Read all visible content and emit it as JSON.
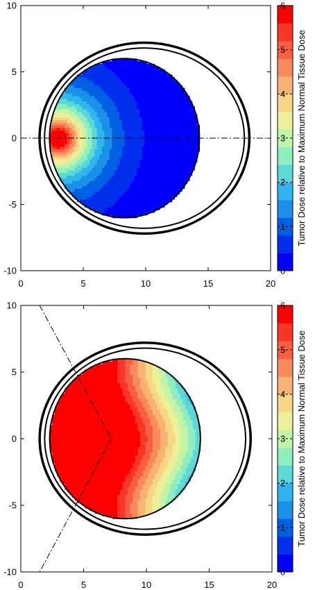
{
  "chart_data": [
    {
      "type": "heatmap",
      "title": "",
      "xlabel": "",
      "ylabel": "",
      "xlim": [
        0,
        20
      ],
      "ylim": [
        -10,
        10
      ],
      "xticks": [
        "0",
        "5",
        "10",
        "15",
        "20"
      ],
      "yticks": [
        "-10",
        "-5",
        "0",
        "5",
        "10"
      ],
      "colorbar": {
        "label": "Tumor Dose relative to Maximum Normal Tissue Dose",
        "range": [
          0,
          6
        ],
        "ticks": [
          "0",
          "1",
          "2",
          "3",
          "4",
          "5",
          "6"
        ],
        "colors": [
          "#0000ff",
          "#0030ee",
          "#0060e4",
          "#1a90e8",
          "#30b6ee",
          "#5cd8d8",
          "#8eeec0",
          "#c2f4a8",
          "#ecf09a",
          "#f8d688",
          "#f8b272",
          "#f88a5c",
          "#f85e44",
          "#f83628",
          "#ff0000"
        ]
      },
      "tumor": {
        "center": [
          8.3,
          0
        ],
        "radius": 6.0,
        "peak_x": 3.0,
        "peak_value": 6.0,
        "min_value": 0.2
      },
      "body_outlines": [
        {
          "center": [
            9.9,
            0
          ],
          "rx": 8.0,
          "ry": 6.8
        },
        {
          "center": [
            9.9,
            0
          ],
          "rx": 8.4,
          "ry": 7.2
        }
      ],
      "beam_lines": [
        {
          "from": [
            0,
            0
          ],
          "to": [
            20,
            0
          ]
        }
      ]
    },
    {
      "type": "heatmap",
      "title": "",
      "xlabel": "",
      "ylabel": "",
      "xlim": [
        0,
        20
      ],
      "ylim": [
        -10,
        10
      ],
      "xticks": [
        "0",
        "5",
        "10",
        "15",
        "20"
      ],
      "yticks": [
        "-10",
        "-5",
        "0",
        "5",
        "10"
      ],
      "colorbar": {
        "label": "Tumor Dose relative to Maximum Normal Tissue Dose",
        "range": [
          0,
          6
        ],
        "ticks": [
          "0",
          "1",
          "2",
          "3",
          "4",
          "5",
          "6"
        ],
        "colors": [
          "#0000ff",
          "#0030ee",
          "#0060e4",
          "#1a90e8",
          "#30b6ee",
          "#5cd8d8",
          "#8eeec0",
          "#c2f4a8",
          "#ecf09a",
          "#f8d688",
          "#f8b272",
          "#f88a5c",
          "#f85e44",
          "#f83628",
          "#ff0000"
        ]
      },
      "tumor": {
        "center": [
          8.3,
          0
        ],
        "radius": 6.0,
        "plateau_x": 8.0,
        "peak_value": 6.0,
        "min_value": 1.0
      },
      "body_outlines": [
        {
          "center": [
            9.9,
            0
          ],
          "rx": 8.0,
          "ry": 6.8
        },
        {
          "center": [
            9.9,
            0
          ],
          "rx": 8.4,
          "ry": 7.2
        }
      ],
      "beam_lines": [
        {
          "from": [
            1.5,
            10
          ],
          "to": [
            7.2,
            0
          ]
        },
        {
          "from": [
            7.2,
            0
          ],
          "to": [
            1.5,
            -10
          ]
        }
      ]
    }
  ]
}
